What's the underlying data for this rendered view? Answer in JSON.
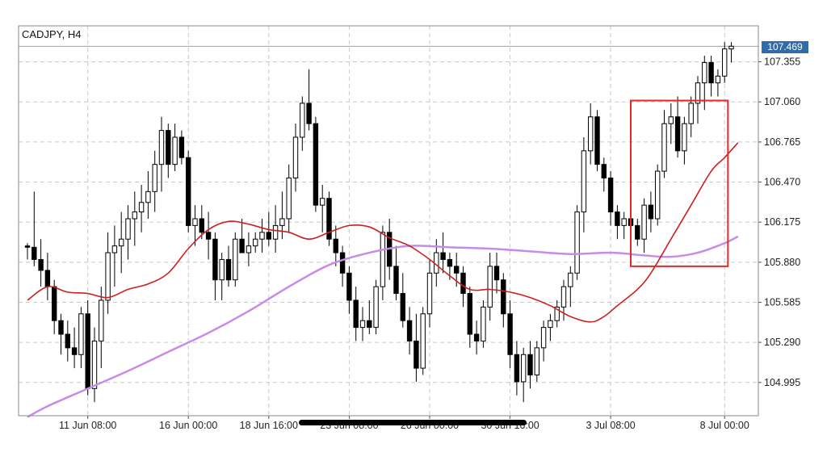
{
  "symbol": "CADJPY, H4",
  "current_price": "107.469",
  "colors": {
    "bull": "#ffffff",
    "bear": "#000000",
    "fast_ma": "#cc1f1f",
    "slow_ma": "#c98be8",
    "highlight_box": "#e02b2b",
    "current_price_line": "#8fa8b8",
    "grid": "#c8c8c8"
  },
  "chart_data": {
    "type": "candlestick",
    "timeframe": "H4",
    "ylim": [
      104.75,
      107.62
    ],
    "y_ticks": [
      "107.355",
      "107.060",
      "106.765",
      "106.470",
      "106.175",
      "105.880",
      "105.585",
      "105.290",
      "104.995"
    ],
    "x_ticks": [
      "11 Jun 08:00",
      "16 Jun 00:00",
      "18 Jun 16:00",
      "23 Jun 08:00",
      "26 Jun 00:00",
      "30 Jun 16:00",
      "3 Jul 08:00",
      "8 Jul 00:00"
    ],
    "grid": true,
    "candles": [
      [
        106.0,
        106.02,
        105.9,
        105.99
      ],
      [
        105.99,
        106.4,
        105.85,
        105.9
      ],
      [
        105.9,
        106.05,
        105.7,
        105.82
      ],
      [
        105.82,
        105.95,
        105.6,
        105.7
      ],
      [
        105.7,
        105.75,
        105.35,
        105.45
      ],
      [
        105.45,
        105.5,
        105.2,
        105.35
      ],
      [
        105.35,
        105.45,
        105.15,
        105.25
      ],
      [
        105.25,
        105.4,
        105.1,
        105.2
      ],
      [
        105.2,
        105.55,
        105.1,
        105.5
      ],
      [
        105.5,
        105.6,
        104.9,
        104.95
      ],
      [
        104.95,
        105.4,
        104.85,
        105.3
      ],
      [
        105.3,
        105.7,
        105.1,
        105.6
      ],
      [
        105.6,
        106.1,
        105.5,
        105.95
      ],
      [
        105.95,
        106.15,
        105.7,
        106.0
      ],
      [
        106.0,
        106.25,
        105.8,
        106.05
      ],
      [
        106.05,
        106.3,
        105.9,
        106.2
      ],
      [
        106.2,
        106.4,
        106.0,
        106.25
      ],
      [
        106.25,
        106.45,
        106.1,
        106.32
      ],
      [
        106.32,
        106.55,
        106.2,
        106.4
      ],
      [
        106.4,
        106.7,
        106.25,
        106.6
      ],
      [
        106.6,
        106.95,
        106.4,
        106.85
      ],
      [
        106.85,
        106.9,
        106.5,
        106.6
      ],
      [
        106.6,
        106.9,
        106.55,
        106.8
      ],
      [
        106.8,
        106.85,
        106.6,
        106.65
      ],
      [
        106.65,
        106.7,
        106.1,
        106.15
      ],
      [
        106.15,
        106.3,
        106.0,
        106.2
      ],
      [
        106.2,
        106.3,
        106.05,
        106.1
      ],
      [
        106.1,
        106.25,
        105.9,
        106.05
      ],
      [
        106.05,
        106.1,
        105.6,
        105.75
      ],
      [
        105.75,
        105.95,
        105.6,
        105.9
      ],
      [
        105.9,
        106.0,
        105.7,
        105.75
      ],
      [
        105.75,
        106.1,
        105.7,
        106.05
      ],
      [
        106.05,
        106.2,
        105.95,
        105.95
      ],
      [
        105.95,
        106.1,
        105.85,
        106.0
      ],
      [
        106.0,
        106.1,
        105.95,
        106.05
      ],
      [
        106.05,
        106.2,
        105.95,
        106.1
      ],
      [
        106.1,
        106.25,
        106.0,
        106.05
      ],
      [
        106.05,
        106.3,
        105.95,
        106.15
      ],
      [
        106.15,
        106.4,
        106.05,
        106.2
      ],
      [
        106.2,
        106.6,
        106.1,
        106.5
      ],
      [
        106.5,
        106.9,
        106.4,
        106.8
      ],
      [
        106.8,
        107.1,
        106.7,
        107.05
      ],
      [
        107.05,
        107.3,
        106.85,
        106.9
      ],
      [
        106.9,
        106.95,
        106.25,
        106.3
      ],
      [
        106.3,
        106.45,
        106.1,
        106.35
      ],
      [
        106.35,
        106.4,
        106.0,
        106.05
      ],
      [
        106.05,
        106.15,
        105.85,
        105.95
      ],
      [
        105.95,
        106.0,
        105.7,
        105.8
      ],
      [
        105.8,
        105.85,
        105.5,
        105.6
      ],
      [
        105.6,
        105.7,
        105.3,
        105.4
      ],
      [
        105.4,
        105.55,
        105.3,
        105.45
      ],
      [
        105.45,
        105.6,
        105.35,
        105.4
      ],
      [
        105.4,
        105.75,
        105.35,
        105.7
      ],
      [
        105.7,
        106.15,
        105.6,
        106.1
      ],
      [
        106.1,
        106.2,
        105.75,
        105.85
      ],
      [
        105.85,
        106.0,
        105.6,
        105.65
      ],
      [
        105.65,
        105.8,
        105.4,
        105.45
      ],
      [
        105.45,
        105.55,
        105.2,
        105.3
      ],
      [
        105.3,
        105.5,
        105.0,
        105.1
      ],
      [
        105.1,
        105.55,
        105.05,
        105.5
      ],
      [
        105.5,
        105.9,
        105.4,
        105.8
      ],
      [
        105.8,
        106.05,
        105.7,
        105.95
      ],
      [
        105.95,
        106.1,
        105.8,
        105.9
      ],
      [
        105.9,
        105.95,
        105.75,
        105.85
      ],
      [
        105.85,
        105.95,
        105.7,
        105.8
      ],
      [
        105.8,
        105.85,
        105.55,
        105.65
      ],
      [
        105.65,
        105.7,
        105.25,
        105.35
      ],
      [
        105.35,
        105.45,
        105.2,
        105.3
      ],
      [
        105.3,
        105.6,
        105.25,
        105.55
      ],
      [
        105.55,
        105.95,
        105.45,
        105.85
      ],
      [
        105.85,
        105.95,
        105.65,
        105.75
      ],
      [
        105.75,
        105.8,
        105.4,
        105.5
      ],
      [
        105.5,
        105.6,
        105.1,
        105.2
      ],
      [
        105.2,
        105.3,
        104.9,
        105.0
      ],
      [
        105.0,
        105.25,
        104.85,
        105.2
      ],
      [
        105.2,
        105.3,
        104.95,
        105.05
      ],
      [
        105.05,
        105.3,
        105.0,
        105.25
      ],
      [
        105.25,
        105.45,
        105.15,
        105.4
      ],
      [
        105.4,
        105.5,
        105.3,
        105.45
      ],
      [
        105.45,
        105.6,
        105.4,
        105.55
      ],
      [
        105.55,
        105.75,
        105.45,
        105.7
      ],
      [
        105.7,
        105.85,
        105.55,
        105.8
      ],
      [
        105.8,
        106.3,
        105.75,
        106.25
      ],
      [
        106.25,
        106.8,
        106.1,
        106.7
      ],
      [
        106.7,
        107.05,
        106.6,
        106.95
      ],
      [
        106.95,
        107.0,
        106.55,
        106.6
      ],
      [
        106.6,
        106.65,
        106.4,
        106.5
      ],
      [
        106.5,
        106.55,
        106.15,
        106.25
      ],
      [
        106.25,
        106.3,
        106.05,
        106.15
      ],
      [
        106.15,
        106.25,
        106.05,
        106.2
      ],
      [
        106.2,
        106.25,
        106.1,
        106.15
      ],
      [
        106.15,
        106.2,
        106.0,
        106.05
      ],
      [
        106.05,
        106.35,
        105.95,
        106.3
      ],
      [
        106.3,
        106.4,
        106.1,
        106.2
      ],
      [
        106.2,
        106.6,
        106.15,
        106.55
      ],
      [
        106.55,
        107.0,
        106.5,
        106.9
      ],
      [
        106.9,
        107.05,
        106.75,
        106.95
      ],
      [
        106.95,
        107.1,
        106.65,
        106.7
      ],
      [
        106.7,
        106.95,
        106.6,
        106.9
      ],
      [
        106.9,
        107.1,
        106.8,
        107.05
      ],
      [
        107.05,
        107.25,
        106.9,
        107.2
      ],
      [
        107.2,
        107.4,
        107.0,
        107.35
      ],
      [
        107.35,
        107.4,
        107.1,
        107.2
      ],
      [
        107.2,
        107.3,
        107.1,
        107.25
      ],
      [
        107.25,
        107.5,
        107.2,
        107.45
      ],
      [
        107.45,
        107.5,
        107.35,
        107.47
      ]
    ],
    "series": [
      {
        "role": "fast moving average (red)",
        "values": [
          [
            0,
            105.6
          ],
          [
            3,
            105.7
          ],
          [
            6,
            105.66
          ],
          [
            9,
            105.65
          ],
          [
            12,
            105.62
          ],
          [
            15,
            105.68
          ],
          [
            18,
            105.72
          ],
          [
            21,
            105.8
          ],
          [
            24,
            105.98
          ],
          [
            27,
            106.12
          ],
          [
            30,
            106.18
          ],
          [
            33,
            106.16
          ],
          [
            36,
            106.12
          ],
          [
            39,
            106.1
          ],
          [
            42,
            106.05
          ],
          [
            45,
            106.1
          ],
          [
            48,
            106.15
          ],
          [
            51,
            106.14
          ],
          [
            54,
            106.06
          ],
          [
            57,
            106.0
          ],
          [
            60,
            105.9
          ],
          [
            63,
            105.78
          ],
          [
            66,
            105.68
          ],
          [
            69,
            105.68
          ],
          [
            72,
            105.66
          ],
          [
            75,
            105.62
          ],
          [
            78,
            105.56
          ],
          [
            81,
            105.48
          ],
          [
            84,
            105.44
          ],
          [
            86,
            105.48
          ],
          [
            88,
            105.56
          ],
          [
            91,
            105.68
          ],
          [
            93,
            105.8
          ],
          [
            96,
            106.05
          ],
          [
            99,
            106.3
          ],
          [
            102,
            106.55
          ],
          [
            104,
            106.65
          ],
          [
            106,
            106.76
          ]
        ]
      },
      {
        "role": "slow moving average (violet)",
        "values": [
          [
            0,
            104.74
          ],
          [
            3,
            104.82
          ],
          [
            9,
            104.95
          ],
          [
            15,
            105.08
          ],
          [
            21,
            105.22
          ],
          [
            27,
            105.36
          ],
          [
            33,
            105.52
          ],
          [
            39,
            105.7
          ],
          [
            45,
            105.86
          ],
          [
            51,
            105.95
          ],
          [
            57,
            106.0
          ],
          [
            63,
            105.99
          ],
          [
            69,
            105.98
          ],
          [
            75,
            105.96
          ],
          [
            81,
            105.94
          ],
          [
            87,
            105.95
          ],
          [
            92,
            105.93
          ],
          [
            96,
            105.92
          ],
          [
            100,
            105.95
          ],
          [
            104,
            106.02
          ],
          [
            106,
            106.07
          ]
        ]
      }
    ],
    "current_price": 107.469,
    "highlight_box": {
      "x_from": 90,
      "x_to": 104.5,
      "y_from": 105.85,
      "y_to": 107.07
    }
  }
}
